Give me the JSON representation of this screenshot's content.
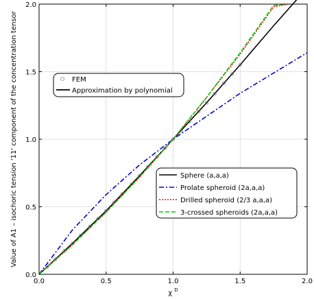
{
  "chart_data": {
    "type": "line",
    "xlabel": "χ",
    "xlabel_superscript": "D",
    "ylabel": "Value of A1 – isochoric tension '11' component of the concentration tensor",
    "xlim": [
      0.0,
      2.0
    ],
    "ylim": [
      0.0,
      2.0
    ],
    "xticks": [
      "0.0",
      "0.5",
      "1.0",
      "1.5",
      "2.0"
    ],
    "yticks": [
      "0.0",
      "0.5",
      "1.0",
      "1.5",
      "2.0"
    ],
    "grid": true,
    "legend_top": {
      "placement": "upper-left",
      "entries": [
        {
          "label": "FEM",
          "style": "circle-marker"
        },
        {
          "label": "Approximation by polynomial",
          "style": "solid-line"
        }
      ]
    },
    "legend_bottom": {
      "placement": "lower-right",
      "entries": [
        {
          "label": "Sphere (a,a,a)",
          "color": "#000000",
          "style": "solid"
        },
        {
          "label": "Prolate spheroid (2a,a,a)",
          "color": "#0000cc",
          "style": "dashdot"
        },
        {
          "label": "Drilled spheroid (2/3 a,a,a)",
          "color": "#ff0000",
          "style": "dotted"
        },
        {
          "label": "3-crossed spheroids (2a,a,a)",
          "color": "#00cc00",
          "style": "dashed"
        }
      ]
    },
    "series": [
      {
        "name": "Sphere (a,a,a)",
        "color": "#000000",
        "style": "solid",
        "x": [
          0.0,
          0.25,
          0.5,
          0.75,
          1.0,
          1.25,
          1.5,
          1.75,
          2.0
        ],
        "y": [
          0.0,
          0.23,
          0.47,
          0.73,
          1.0,
          1.27,
          1.55,
          1.84,
          2.12
        ]
      },
      {
        "name": "Prolate spheroid (2a,a,a)",
        "color": "#0000cc",
        "style": "dashdot",
        "x": [
          0.0,
          0.25,
          0.5,
          0.75,
          1.0,
          1.25,
          1.5,
          1.75,
          2.0
        ],
        "y": [
          0.0,
          0.33,
          0.59,
          0.81,
          1.0,
          1.17,
          1.34,
          1.49,
          1.64
        ]
      },
      {
        "name": "Drilled spheroid (2/3 a,a,a)",
        "color": "#ff0000",
        "style": "dotted",
        "x": [
          0.0,
          0.25,
          0.5,
          0.75,
          1.0,
          1.25,
          1.5,
          1.75,
          1.86
        ],
        "y": [
          0.0,
          0.22,
          0.46,
          0.72,
          1.0,
          1.31,
          1.63,
          1.98,
          2.0
        ]
      },
      {
        "name": "3-crossed spheroids (2a,a,a)",
        "color": "#00cc00",
        "style": "dashed",
        "x": [
          0.0,
          0.25,
          0.5,
          0.75,
          1.0,
          1.25,
          1.5,
          1.75,
          1.84
        ],
        "y": [
          0.0,
          0.22,
          0.46,
          0.72,
          1.0,
          1.31,
          1.64,
          1.99,
          2.0
        ]
      }
    ],
    "fem_points_x": [
      0.06,
      0.12,
      0.19,
      0.25,
      0.31,
      0.38,
      0.44,
      0.5,
      0.56,
      0.62,
      0.69,
      0.75,
      0.81,
      0.88,
      0.94,
      1.0,
      1.06,
      1.12,
      1.19,
      1.25,
      1.31,
      1.38,
      1.44,
      1.5
    ]
  }
}
